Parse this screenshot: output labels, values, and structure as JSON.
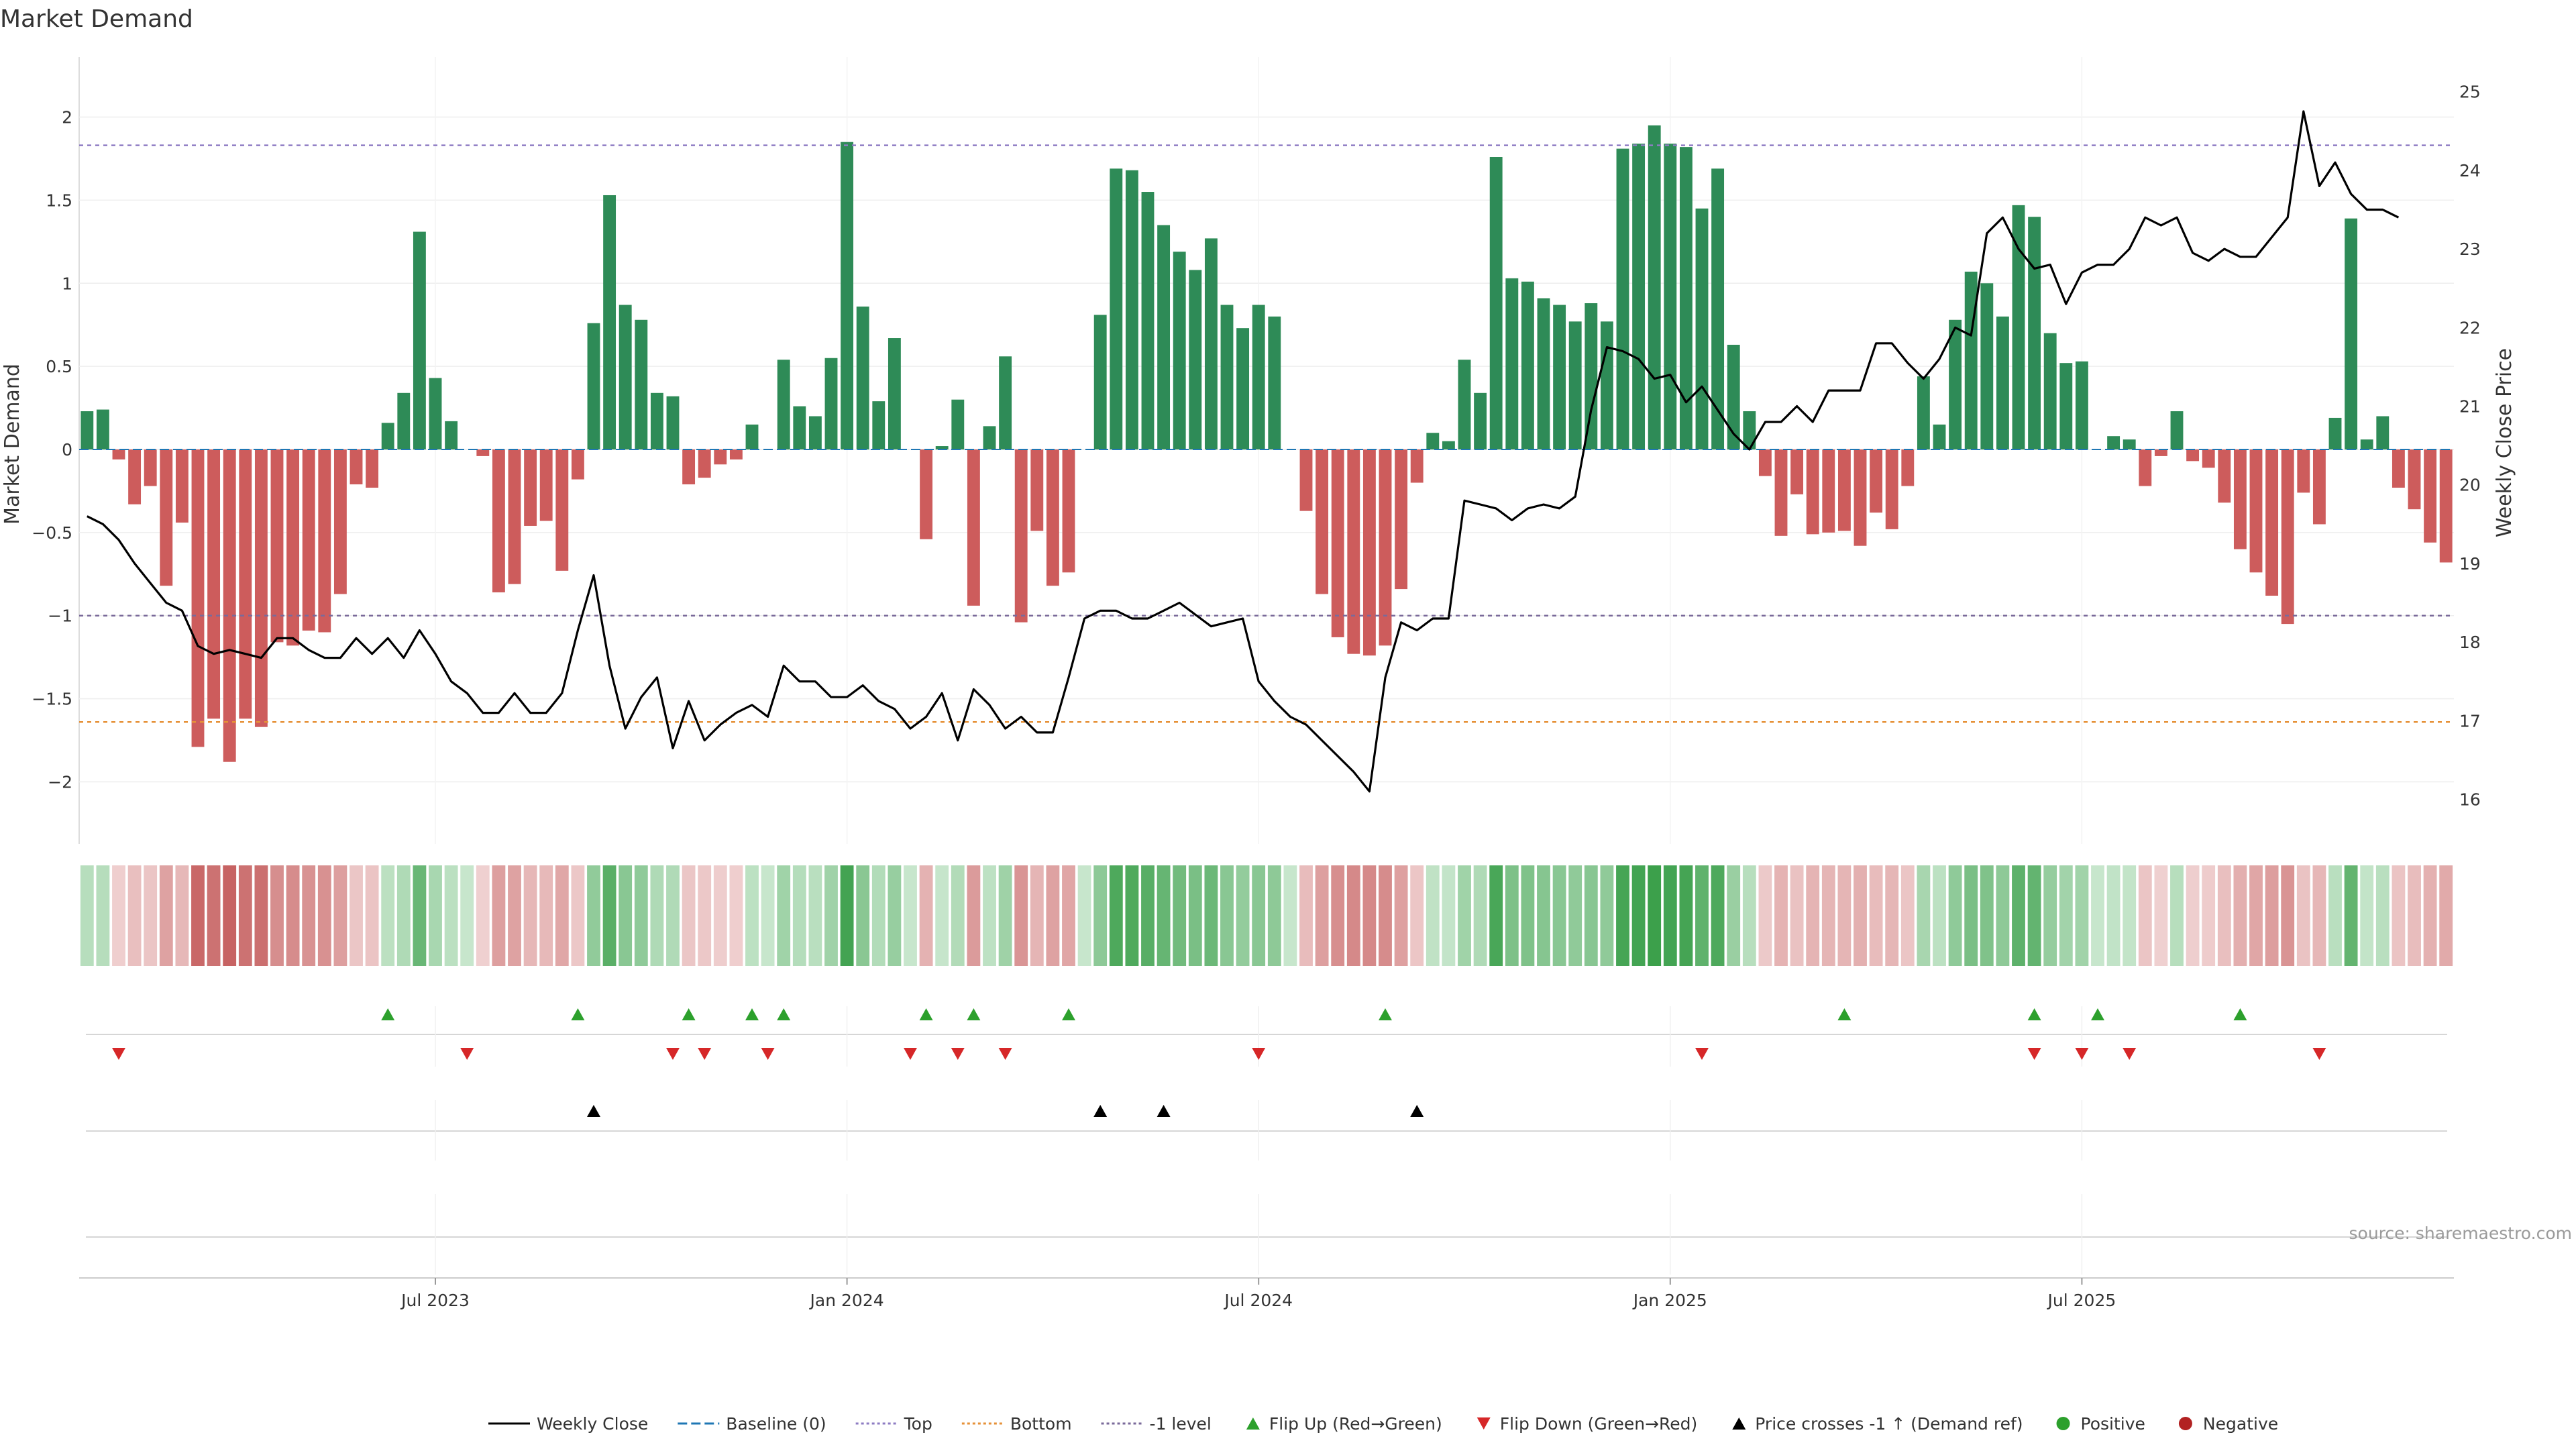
{
  "title": "Market Demand",
  "source": "source: sharemaestro.com",
  "colors": {
    "positive": "#2e8b57",
    "negative": "#cd5c5c",
    "top_line": "#8e7cc3",
    "bottom_line": "#e69138",
    "level_line": "#7a6a9a",
    "close_line": "#000000",
    "flip_up": "#2ca02c",
    "flip_down": "#d62728",
    "cross": "#000000"
  },
  "chart_data": {
    "type": "bar",
    "title": "Market Demand",
    "ylabel": "Market Demand",
    "y2label": "Weekly Close Price",
    "ylim": [
      -2.2,
      2.2
    ],
    "y2lim": [
      15.8,
      25.1
    ],
    "yticks": [
      2,
      1.5,
      1,
      0.5,
      0,
      -0.5,
      -1,
      -1.5,
      -2
    ],
    "ytick_labels": [
      "2",
      "1.5",
      "1",
      "0.5",
      "0",
      "−0.5",
      "−1",
      "−1.5",
      "−2"
    ],
    "y2ticks": [
      25,
      24,
      23,
      22,
      21,
      20,
      19,
      18,
      17,
      16
    ],
    "x_tick_labels": [
      {
        "label": "Jul 2023",
        "week": 22
      },
      {
        "label": "Jan 2024",
        "week": 48
      },
      {
        "label": "Jul 2024",
        "week": 74
      },
      {
        "label": "Jan 2025",
        "week": 100
      },
      {
        "label": "Jul 2025",
        "week": 126
      }
    ],
    "reference_lines": {
      "top": 1.83,
      "bottom": -1.64,
      "minus_one_level": -1.0,
      "baseline": 0
    },
    "demand": [
      0.23,
      0.24,
      -0.06,
      -0.33,
      -0.22,
      -0.82,
      -0.44,
      -1.79,
      -1.62,
      -1.88,
      -1.62,
      -1.67,
      -1.16,
      -1.18,
      -1.09,
      -1.1,
      -0.87,
      -0.21,
      -0.23,
      0.16,
      0.34,
      1.31,
      0.43,
      0.17,
      0,
      -0.04,
      -0.86,
      -0.81,
      -0.46,
      -0.43,
      -0.73,
      -0.18,
      0.76,
      1.53,
      0.87,
      0.78,
      0.34,
      0.32,
      -0.21,
      -0.17,
      -0.09,
      -0.06,
      0.15,
      0,
      0.54,
      0.26,
      0.2,
      0.55,
      1.85,
      0.86,
      0.29,
      0.67,
      0,
      -0.54,
      0.02,
      0.3,
      -0.94,
      0.14,
      0.56,
      -1.04,
      -0.49,
      -0.82,
      -0.74,
      0,
      0.81,
      1.69,
      1.68,
      1.55,
      1.35,
      1.19,
      1.08,
      1.27,
      0.87,
      0.73,
      0.87,
      0.8,
      0,
      -0.37,
      -0.87,
      -1.13,
      -1.23,
      -1.24,
      -1.18,
      -0.84,
      -0.2,
      0.1,
      0.05,
      0.54,
      0.34,
      1.76,
      1.03,
      1.01,
      0.91,
      0.87,
      0.77,
      0.88,
      0.77,
      1.81,
      1.84,
      1.95,
      1.84,
      1.82,
      1.45,
      1.69,
      0.63,
      0.23,
      -0.16,
      -0.52,
      -0.27,
      -0.51,
      -0.5,
      -0.49,
      -0.58,
      -0.38,
      -0.48,
      -0.22,
      0.44,
      0.15,
      0.78,
      1.07,
      1.0,
      0.8,
      1.47,
      1.4,
      0.7,
      0.52,
      0.53,
      0,
      0.08,
      0.06,
      -0.22,
      -0.04,
      0.23,
      -0.07,
      -0.11,
      -0.32,
      -0.6,
      -0.74,
      -0.88,
      -1.05,
      -0.26,
      -0.45,
      0.19,
      1.39,
      0.06,
      0.2,
      -0.23,
      -0.36,
      -0.56,
      -0.68
    ],
    "weekly_close": [
      19.6,
      19.5,
      19.3,
      19.0,
      18.75,
      18.5,
      18.4,
      17.95,
      17.85,
      17.9,
      17.85,
      17.8,
      18.05,
      18.05,
      17.9,
      17.8,
      17.8,
      18.05,
      17.85,
      18.05,
      17.8,
      18.15,
      17.85,
      17.5,
      17.35,
      17.1,
      17.1,
      17.35,
      17.1,
      17.1,
      17.35,
      18.15,
      18.85,
      17.7,
      16.9,
      17.3,
      17.55,
      16.65,
      17.25,
      16.75,
      16.95,
      17.1,
      17.2,
      17.05,
      17.7,
      17.5,
      17.5,
      17.3,
      17.3,
      17.45,
      17.25,
      17.15,
      16.9,
      17.05,
      17.35,
      16.75,
      17.4,
      17.2,
      16.9,
      17.05,
      16.85,
      16.85,
      17.55,
      18.3,
      18.4,
      18.4,
      18.3,
      18.3,
      18.4,
      18.5,
      18.35,
      18.2,
      18.25,
      18.3,
      17.5,
      17.25,
      17.05,
      16.95,
      16.75,
      16.55,
      16.35,
      16.1,
      17.55,
      18.25,
      18.15,
      18.3,
      18.3,
      19.8,
      19.75,
      19.7,
      19.55,
      19.7,
      19.75,
      19.7,
      19.85,
      20.95,
      21.75,
      21.7,
      21.6,
      21.35,
      21.4,
      21.05,
      21.25,
      20.95,
      20.65,
      20.45,
      20.8,
      20.8,
      21.0,
      20.8,
      21.2,
      21.2,
      21.2,
      21.8,
      21.8,
      21.55,
      21.35,
      21.6,
      22.0,
      21.9,
      23.2,
      23.4,
      23.0,
      22.75,
      22.8,
      22.3,
      22.7,
      22.8,
      22.8,
      23.0,
      23.4,
      23.3,
      23.4,
      22.95,
      22.85,
      23.0,
      22.9,
      22.9,
      23.15,
      23.4,
      24.75,
      23.8,
      24.1,
      23.7,
      23.5,
      23.5,
      23.4
    ],
    "flip_up_weeks": [
      19,
      31,
      38,
      42,
      44,
      53,
      56,
      62,
      82,
      111,
      123,
      127,
      136
    ],
    "flip_down_weeks": [
      2,
      24,
      37,
      39,
      43,
      52,
      55,
      58,
      74,
      102,
      123,
      126,
      129,
      141
    ],
    "cross_weeks": [
      32,
      64,
      68,
      84
    ]
  },
  "legend": [
    {
      "label": "Weekly Close",
      "kind": "line",
      "color": "#000000",
      "dash": ""
    },
    {
      "label": "Baseline (0)",
      "kind": "line",
      "color": "#1f77b4",
      "dash": "14,6"
    },
    {
      "label": "Top",
      "kind": "line",
      "color": "#8e7cc3",
      "dash": "4,4"
    },
    {
      "label": "Bottom",
      "kind": "line",
      "color": "#e69138",
      "dash": "4,4"
    },
    {
      "label": "-1 level",
      "kind": "line",
      "color": "#7a6a9a",
      "dash": "4,4"
    },
    {
      "label": "Flip Up (Red→Green)",
      "kind": "tri-up",
      "color": "#2ca02c"
    },
    {
      "label": "Flip Down (Green→Red)",
      "kind": "tri-down",
      "color": "#d62728"
    },
    {
      "label": "Price crosses -1 ↑ (Demand ref)",
      "kind": "tri-up",
      "color": "#000000"
    },
    {
      "label": "Positive",
      "kind": "dot",
      "color": "#2ca02c"
    },
    {
      "label": "Negative",
      "kind": "dot",
      "color": "#b22222"
    }
  ]
}
